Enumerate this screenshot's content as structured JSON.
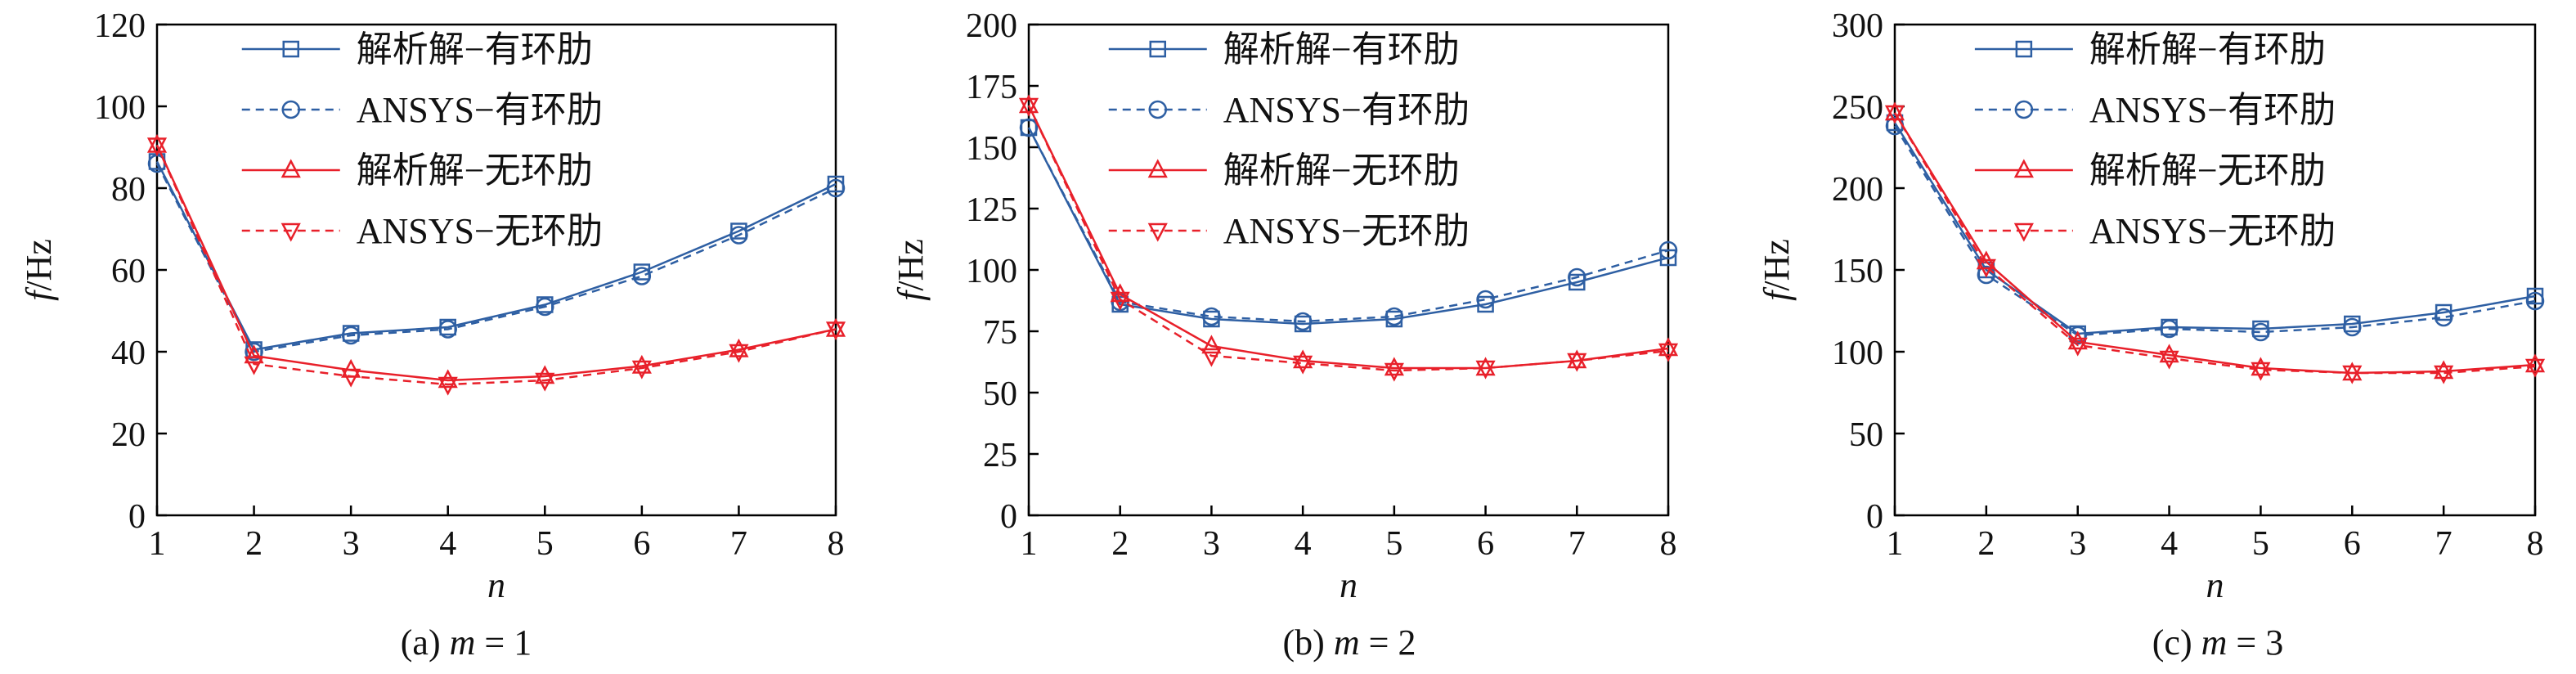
{
  "chart_data": [
    {
      "type": "line",
      "caption": "(a) m = 1",
      "caption_parts": {
        "prefix": "(a) ",
        "var": "m",
        "suffix": " = 1"
      },
      "xlabel": "n",
      "ylabel": "f/Hz",
      "ylabel_parts": {
        "var": "f",
        "unit": "/Hz"
      },
      "xlim": [
        1,
        8
      ],
      "ylim": [
        0,
        120
      ],
      "x_ticks": [
        1,
        2,
        3,
        4,
        5,
        6,
        7,
        8
      ],
      "y_ticks": [
        0,
        20,
        40,
        60,
        80,
        100,
        120
      ],
      "grid": false,
      "legend_position": "top-right",
      "x": [
        1,
        2,
        3,
        4,
        5,
        6,
        7,
        8
      ],
      "series": [
        {
          "name": "解析解−有环肋",
          "values": [
            86.5,
            40.5,
            44.5,
            46,
            51.5,
            59.5,
            69.5,
            81
          ],
          "color": "#2e5fa3",
          "dash": "solid",
          "marker": "square"
        },
        {
          "name": "ANSYS−有环肋",
          "values": [
            86,
            40,
            44,
            45.5,
            51,
            58.5,
            68.5,
            80
          ],
          "color": "#2e5fa3",
          "dash": "dashed",
          "marker": "circle"
        },
        {
          "name": "解析解−无环肋",
          "values": [
            90.5,
            39,
            35.5,
            33,
            34,
            36.5,
            40.5,
            45.5
          ],
          "color": "#e8202a",
          "dash": "solid",
          "marker": "triangle-up"
        },
        {
          "name": "ANSYS−无环肋",
          "values": [
            90.5,
            37,
            34,
            32,
            33,
            36,
            40,
            45.5
          ],
          "color": "#e8202a",
          "dash": "dashed",
          "marker": "triangle-down"
        }
      ]
    },
    {
      "type": "line",
      "caption": "(b) m = 2",
      "caption_parts": {
        "prefix": "(b) ",
        "var": "m",
        "suffix": " = 2"
      },
      "xlabel": "n",
      "ylabel": "f/Hz",
      "ylabel_parts": {
        "var": "f",
        "unit": "/Hz"
      },
      "xlim": [
        1,
        8
      ],
      "ylim": [
        0,
        200
      ],
      "x_ticks": [
        1,
        2,
        3,
        4,
        5,
        6,
        7,
        8
      ],
      "y_ticks": [
        0,
        25,
        50,
        75,
        100,
        125,
        150,
        175,
        200
      ],
      "grid": false,
      "legend_position": "top-right",
      "x": [
        1,
        2,
        3,
        4,
        5,
        6,
        7,
        8
      ],
      "series": [
        {
          "name": "解析解−有环肋",
          "values": [
            158,
            86,
            80,
            78,
            80,
            86,
            95,
            105
          ],
          "color": "#2e5fa3",
          "dash": "solid",
          "marker": "square"
        },
        {
          "name": "ANSYS−有环肋",
          "values": [
            158,
            87,
            81,
            79,
            81,
            88,
            97,
            108
          ],
          "color": "#2e5fa3",
          "dash": "dashed",
          "marker": "circle"
        },
        {
          "name": "解析解−无环肋",
          "values": [
            167,
            90,
            69,
            63,
            60,
            60,
            63,
            68
          ],
          "color": "#e8202a",
          "dash": "solid",
          "marker": "triangle-up"
        },
        {
          "name": "ANSYS−无环肋",
          "values": [
            167,
            88,
            65,
            62,
            59,
            60,
            63,
            67
          ],
          "color": "#e8202a",
          "dash": "dashed",
          "marker": "triangle-down"
        }
      ]
    },
    {
      "type": "line",
      "caption": "(c) m = 3",
      "caption_parts": {
        "prefix": "(c) ",
        "var": "m",
        "suffix": " = 3"
      },
      "xlabel": "n",
      "ylabel": "f/Hz",
      "ylabel_parts": {
        "var": "f",
        "unit": "/Hz"
      },
      "xlim": [
        1,
        8
      ],
      "ylim": [
        0,
        300
      ],
      "x_ticks": [
        1,
        2,
        3,
        4,
        5,
        6,
        7,
        8
      ],
      "y_ticks": [
        0,
        50,
        100,
        150,
        200,
        250,
        300
      ],
      "grid": false,
      "legend_position": "top-right",
      "x": [
        1,
        2,
        3,
        4,
        5,
        6,
        7,
        8
      ],
      "series": [
        {
          "name": "解析解−有环肋",
          "values": [
            240,
            150,
            111,
            115,
            114,
            117,
            124,
            134
          ],
          "color": "#2e5fa3",
          "dash": "solid",
          "marker": "square"
        },
        {
          "name": "ANSYS−有环肋",
          "values": [
            238,
            147,
            110,
            114,
            112,
            115,
            121,
            131
          ],
          "color": "#2e5fa3",
          "dash": "dashed",
          "marker": "circle"
        },
        {
          "name": "解析解−无环肋",
          "values": [
            246,
            155,
            106,
            98,
            90,
            87,
            88,
            92
          ],
          "color": "#e8202a",
          "dash": "solid",
          "marker": "triangle-up"
        },
        {
          "name": "ANSYS−无环肋",
          "values": [
            246,
            152,
            104,
            96,
            89,
            87,
            87,
            91
          ],
          "color": "#e8202a",
          "dash": "dashed",
          "marker": "triangle-down"
        }
      ]
    }
  ]
}
